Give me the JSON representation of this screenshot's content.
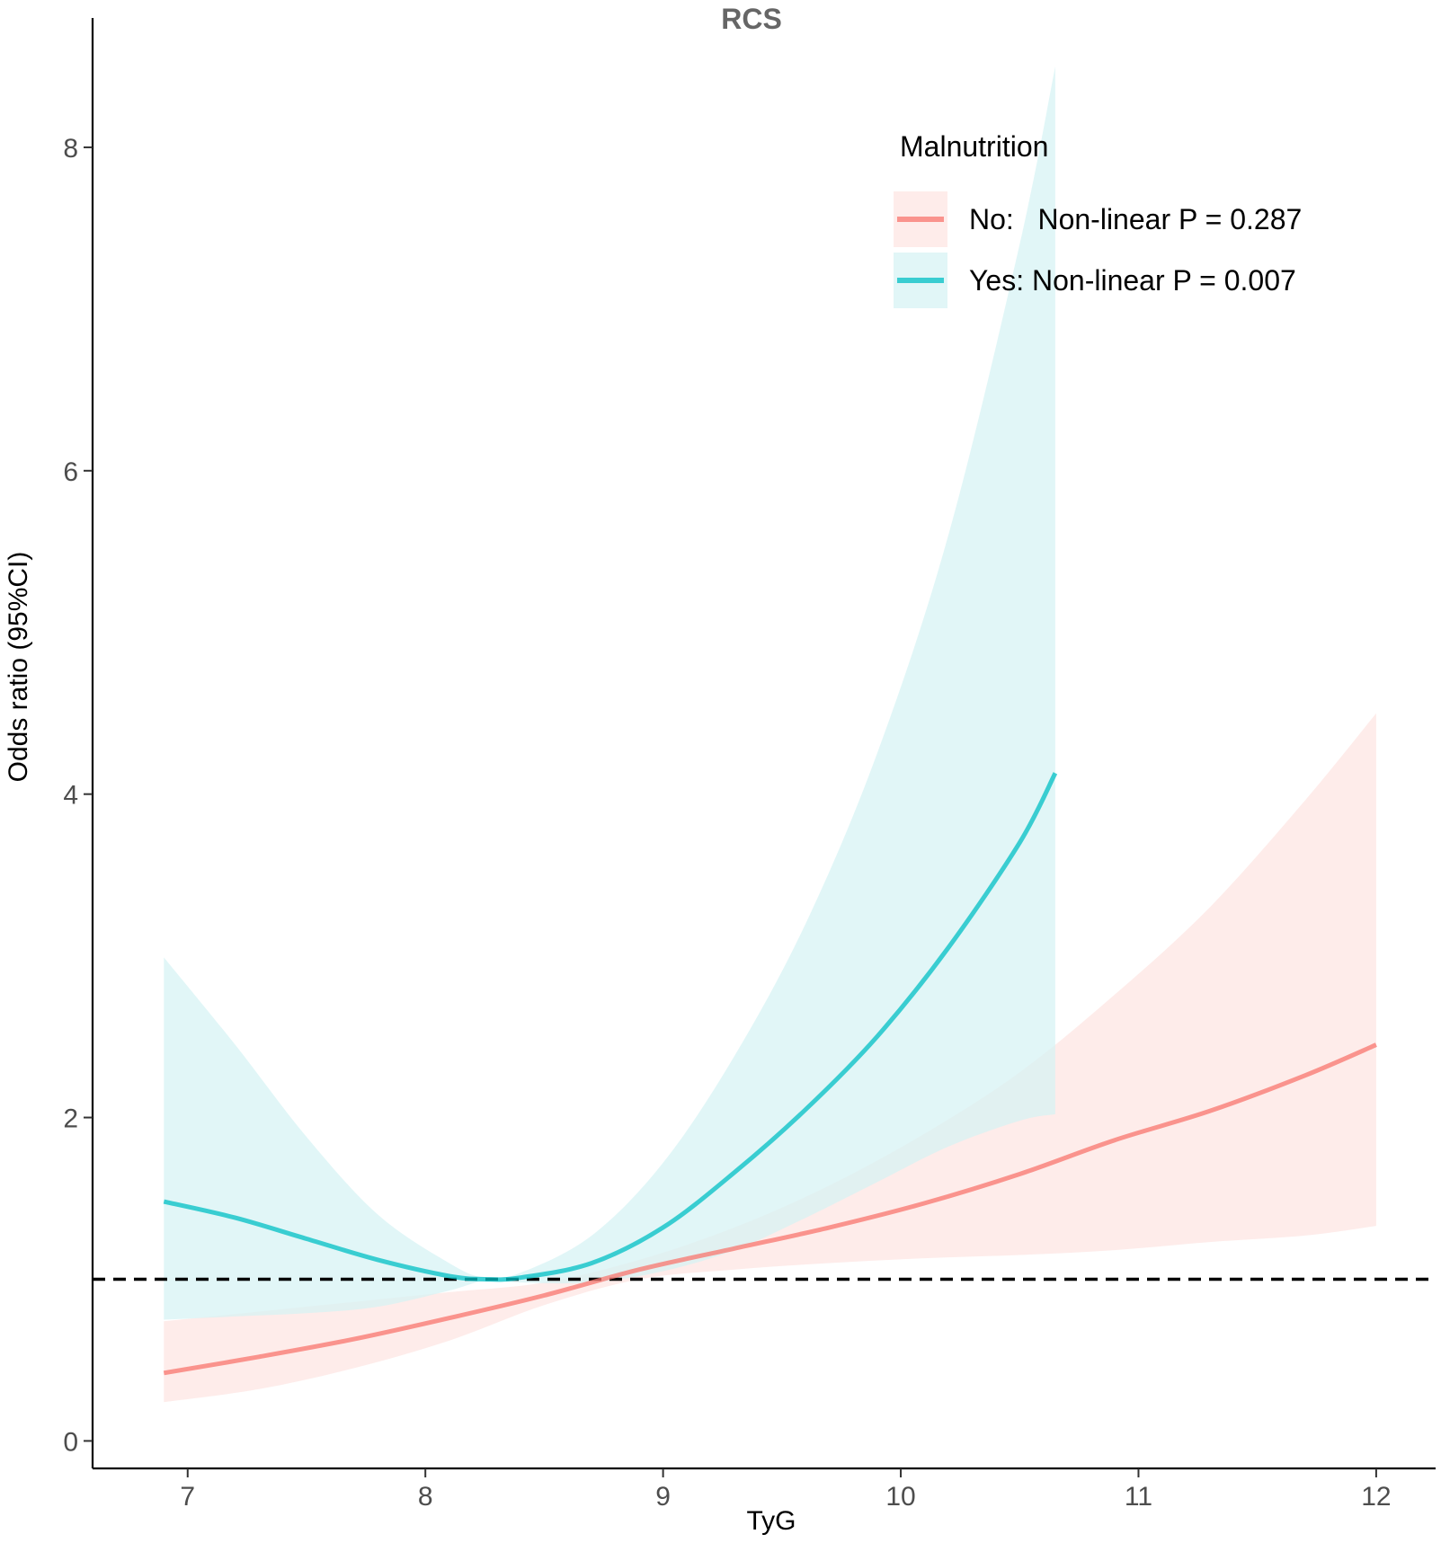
{
  "chart_data": {
    "type": "line",
    "title": "RCS",
    "xlabel": "TyG",
    "ylabel": "Odds ratio (95%CI)",
    "xlim": [
      6.6,
      12.25
    ],
    "ylim": [
      -0.17,
      8.8
    ],
    "x_ticks": [
      7,
      8,
      9,
      10,
      11,
      12
    ],
    "x_tick_labels": [
      "7",
      "8",
      "9",
      "10",
      "11",
      "12"
    ],
    "y_ticks": [
      0,
      2,
      4,
      6,
      8
    ],
    "y_tick_labels": [
      "0",
      "2",
      "4",
      "6",
      "8"
    ],
    "reference_line": {
      "y": 1,
      "style": "dashed",
      "color": "#000000"
    },
    "grid": false,
    "legend": {
      "title": "Malnutrition",
      "position": "top-right",
      "entries": [
        "No:   Non-linear P = 0.287",
        "Yes: Non-linear P = 0.007"
      ]
    },
    "series": [
      {
        "legend_label": "No:   Non-linear P = 0.287",
        "color": "#F8766D",
        "ribbon_color": "#FDE4E2",
        "x": [
          6.9,
          7.3,
          7.7,
          8.1,
          8.5,
          8.9,
          9.3,
          9.7,
          10.1,
          10.5,
          10.9,
          11.3,
          11.7,
          12.0
        ],
        "y": [
          0.42,
          0.52,
          0.63,
          0.76,
          0.9,
          1.06,
          1.19,
          1.32,
          1.47,
          1.65,
          1.86,
          2.04,
          2.26,
          2.45
        ],
        "lower": [
          0.24,
          0.32,
          0.45,
          0.62,
          0.84,
          1.0,
          1.06,
          1.1,
          1.13,
          1.15,
          1.18,
          1.23,
          1.27,
          1.33
        ],
        "upper": [
          0.74,
          0.8,
          0.86,
          0.92,
          0.98,
          1.12,
          1.32,
          1.58,
          1.9,
          2.28,
          2.76,
          3.3,
          3.96,
          4.5
        ]
      },
      {
        "legend_label": "Yes: Non-linear P = 0.007",
        "color": "#00BFC4",
        "ribbon_color": "#D6F3F4",
        "x": [
          6.9,
          7.2,
          7.5,
          7.8,
          8.1,
          8.25,
          8.4,
          8.7,
          9.0,
          9.3,
          9.6,
          9.9,
          10.2,
          10.5,
          10.65
        ],
        "y": [
          1.48,
          1.38,
          1.25,
          1.12,
          1.02,
          1.0,
          1.01,
          1.1,
          1.32,
          1.66,
          2.05,
          2.5,
          3.05,
          3.7,
          4.13
        ],
        "lower": [
          0.75,
          0.77,
          0.79,
          0.83,
          0.93,
          0.99,
          0.98,
          0.98,
          1.05,
          1.18,
          1.38,
          1.6,
          1.82,
          1.98,
          2.02
        ],
        "upper": [
          2.99,
          2.45,
          1.88,
          1.4,
          1.1,
          1.01,
          1.04,
          1.27,
          1.72,
          2.38,
          3.2,
          4.25,
          5.6,
          7.4,
          8.5
        ]
      }
    ]
  }
}
